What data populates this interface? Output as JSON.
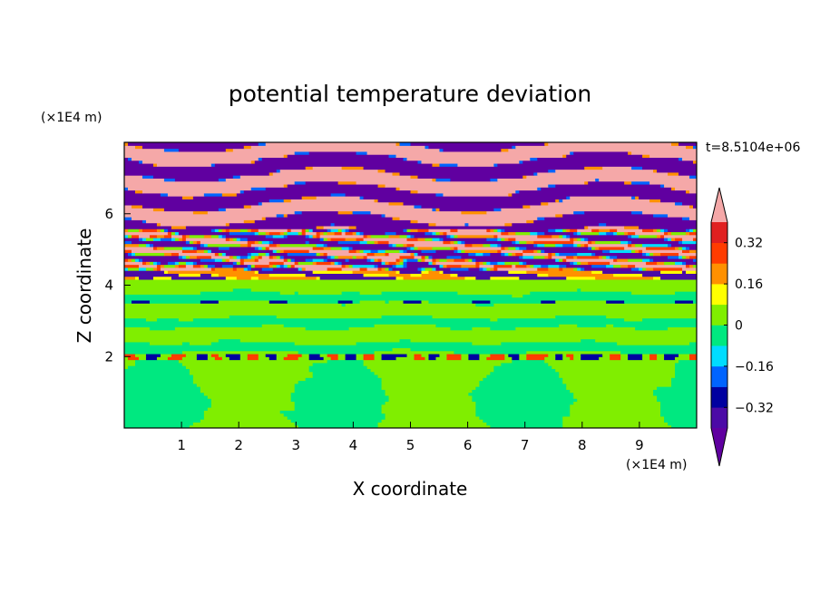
{
  "chart_data": {
    "type": "heatmap",
    "title": "potential temperature deviation",
    "xlabel": "X coordinate",
    "ylabel": "Z coordinate",
    "x_unit": "(×1E4 m)",
    "y_unit": "(×1E4 m)",
    "time_label": "t=8.5104e+06",
    "xlim": [
      0,
      10
    ],
    "ylim": [
      0,
      8
    ],
    "x_ticks": [
      1,
      2,
      3,
      4,
      5,
      6,
      7,
      8,
      9
    ],
    "y_ticks": [
      2,
      4,
      6
    ],
    "colorbar": {
      "labels": [
        "0.32",
        "0.16",
        "0",
        "−0.16",
        "−0.32"
      ],
      "label_values": [
        0.32,
        0.16,
        0,
        -0.16,
        -0.32
      ],
      "levels": [
        -0.4,
        -0.32,
        -0.24,
        -0.16,
        -0.08,
        0,
        0.08,
        0.16,
        0.24,
        0.32,
        0.4
      ],
      "colors": [
        "#6000a0",
        "#4b0aa6",
        "#0000a0",
        "#0064ff",
        "#00dcff",
        "#00e880",
        "#80ee00",
        "#ffff00",
        "#ff9000",
        "#ff3c00",
        "#e02020",
        "#f5a8a8"
      ],
      "extend": "both"
    },
    "layers": [
      {
        "z_range": [
          0,
          2.0
        ],
        "description_value": -0.04,
        "dominant_values": [
          0.04,
          -0.04
        ]
      },
      {
        "z_range": [
          2.0,
          4.2
        ],
        "dominant_values": [
          0.04,
          -0.04
        ]
      },
      {
        "z_range": [
          4.2,
          5.6
        ],
        "dominant_values": [
          0.44,
          -0.44,
          0.28,
          0.2
        ]
      },
      {
        "z_range": [
          5.6,
          8.0
        ],
        "dominant_values": [
          0.44,
          -0.44
        ]
      }
    ]
  }
}
